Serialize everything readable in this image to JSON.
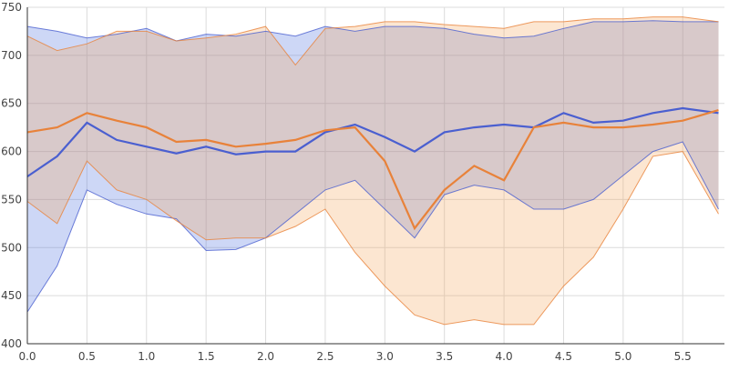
{
  "chart_data": {
    "type": "area",
    "title": "",
    "xlabel": "",
    "ylabel": "",
    "xlim": [
      0,
      5.85
    ],
    "ylim": [
      400,
      750
    ],
    "x_ticks": [
      "0.0",
      "0.5",
      "1.0",
      "1.5",
      "2.0",
      "2.5",
      "3.0",
      "3.5",
      "4.0",
      "4.5",
      "5.0",
      "5.5"
    ],
    "y_ticks": [
      "400",
      "450",
      "500",
      "550",
      "600",
      "650",
      "700",
      "750"
    ],
    "grid": true,
    "legend": "none",
    "x": [
      0.0,
      0.25,
      0.5,
      0.75,
      1.0,
      1.25,
      1.5,
      1.75,
      2.0,
      2.25,
      2.5,
      2.75,
      3.0,
      3.25,
      3.5,
      3.75,
      4.0,
      4.25,
      4.5,
      4.75,
      5.0,
      5.25,
      5.5,
      5.8
    ],
    "series": [
      {
        "color": "#4a5fd0",
        "fill": "#4a6ee0",
        "mean": [
          574,
          595,
          630,
          612,
          605,
          598,
          605,
          597,
          600,
          600,
          620,
          628,
          615,
          600,
          620,
          625,
          628,
          625,
          640,
          630,
          632,
          640,
          645,
          640
        ],
        "upper": [
          730,
          725,
          718,
          722,
          728,
          715,
          722,
          720,
          725,
          720,
          730,
          725,
          730,
          730,
          728,
          722,
          718,
          720,
          728,
          735,
          735,
          736,
          735,
          735
        ],
        "lower": [
          433,
          481,
          560,
          545,
          535,
          530,
          497,
          498,
          510,
          535,
          560,
          570,
          540,
          510,
          555,
          565,
          560,
          540,
          540,
          550,
          575,
          600,
          610,
          540
        ]
      },
      {
        "color": "#e8823a",
        "fill": "#f5a55a",
        "mean": [
          620,
          625,
          640,
          632,
          625,
          610,
          612,
          605,
          608,
          612,
          622,
          625,
          590,
          520,
          560,
          585,
          570,
          625,
          630,
          625,
          625,
          628,
          632,
          643
        ],
        "upper": [
          720,
          705,
          712,
          725,
          725,
          715,
          718,
          722,
          730,
          690,
          728,
          730,
          735,
          735,
          732,
          730,
          728,
          735,
          735,
          738,
          738,
          740,
          740,
          735
        ],
        "lower": [
          548,
          525,
          590,
          560,
          550,
          528,
          508,
          510,
          510,
          522,
          540,
          495,
          460,
          430,
          420,
          425,
          420,
          420,
          460,
          490,
          540,
          595,
          600,
          535
        ]
      }
    ]
  }
}
